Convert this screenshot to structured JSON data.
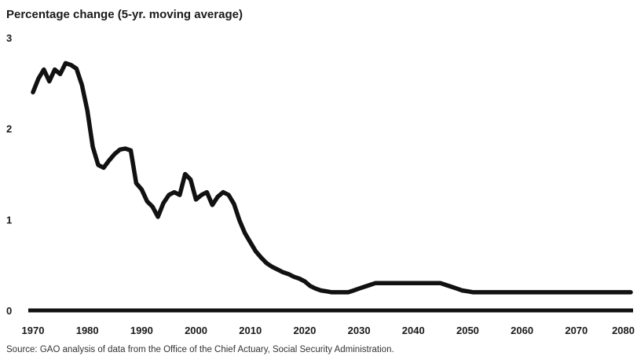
{
  "chart_data": {
    "type": "line",
    "title": "Percentage change (5-yr. moving average)",
    "source": "Source: GAO analysis of data from the Office of the Chief Actuary, Social Security Administration.",
    "xlabel": "",
    "ylabel": "",
    "xlim": [
      1970,
      2080
    ],
    "ylim": [
      0,
      3
    ],
    "x_ticks": [
      "1970",
      "1980",
      "1990",
      "2000",
      "2010",
      "2020",
      "2030",
      "2040",
      "2050",
      "2060",
      "2070",
      "2080"
    ],
    "y_ticks": [
      "0",
      "1",
      "2",
      "3"
    ],
    "grid": false,
    "line_color": "#111111",
    "series": [
      {
        "x": [
          1970,
          1971,
          1972,
          1973,
          1974,
          1975,
          1976,
          1977,
          1978,
          1979,
          1980,
          1981,
          1982,
          1983,
          1984,
          1985,
          1986,
          1987,
          1988,
          1989,
          1990,
          1991,
          1992,
          1993,
          1994,
          1995,
          1996,
          1997,
          1998,
          1999,
          2000,
          2001,
          2002,
          2003,
          2004,
          2005,
          2006,
          2007,
          2008,
          2009,
          2010,
          2011,
          2012,
          2013,
          2014,
          2015,
          2016,
          2017,
          2018,
          2019,
          2020,
          2021,
          2022,
          2023,
          2024,
          2025,
          2026,
          2027,
          2028,
          2029,
          2030,
          2031,
          2032,
          2033,
          2034,
          2035,
          2040,
          2045,
          2046,
          2047,
          2048,
          2049,
          2050,
          2051,
          2055,
          2060,
          2070,
          2080
        ],
        "y": [
          2.4,
          2.55,
          2.65,
          2.52,
          2.65,
          2.6,
          2.72,
          2.7,
          2.66,
          2.48,
          2.2,
          1.8,
          1.6,
          1.57,
          1.65,
          1.72,
          1.77,
          1.78,
          1.76,
          1.4,
          1.33,
          1.2,
          1.14,
          1.03,
          1.18,
          1.27,
          1.3,
          1.27,
          1.5,
          1.44,
          1.22,
          1.27,
          1.3,
          1.16,
          1.25,
          1.3,
          1.27,
          1.17,
          0.99,
          0.85,
          0.75,
          0.65,
          0.58,
          0.52,
          0.48,
          0.45,
          0.42,
          0.4,
          0.37,
          0.35,
          0.32,
          0.27,
          0.24,
          0.22,
          0.21,
          0.2,
          0.2,
          0.2,
          0.2,
          0.22,
          0.24,
          0.26,
          0.28,
          0.3,
          0.3,
          0.3,
          0.3,
          0.3,
          0.28,
          0.26,
          0.24,
          0.22,
          0.21,
          0.2,
          0.2,
          0.2,
          0.2,
          0.2
        ]
      }
    ]
  }
}
